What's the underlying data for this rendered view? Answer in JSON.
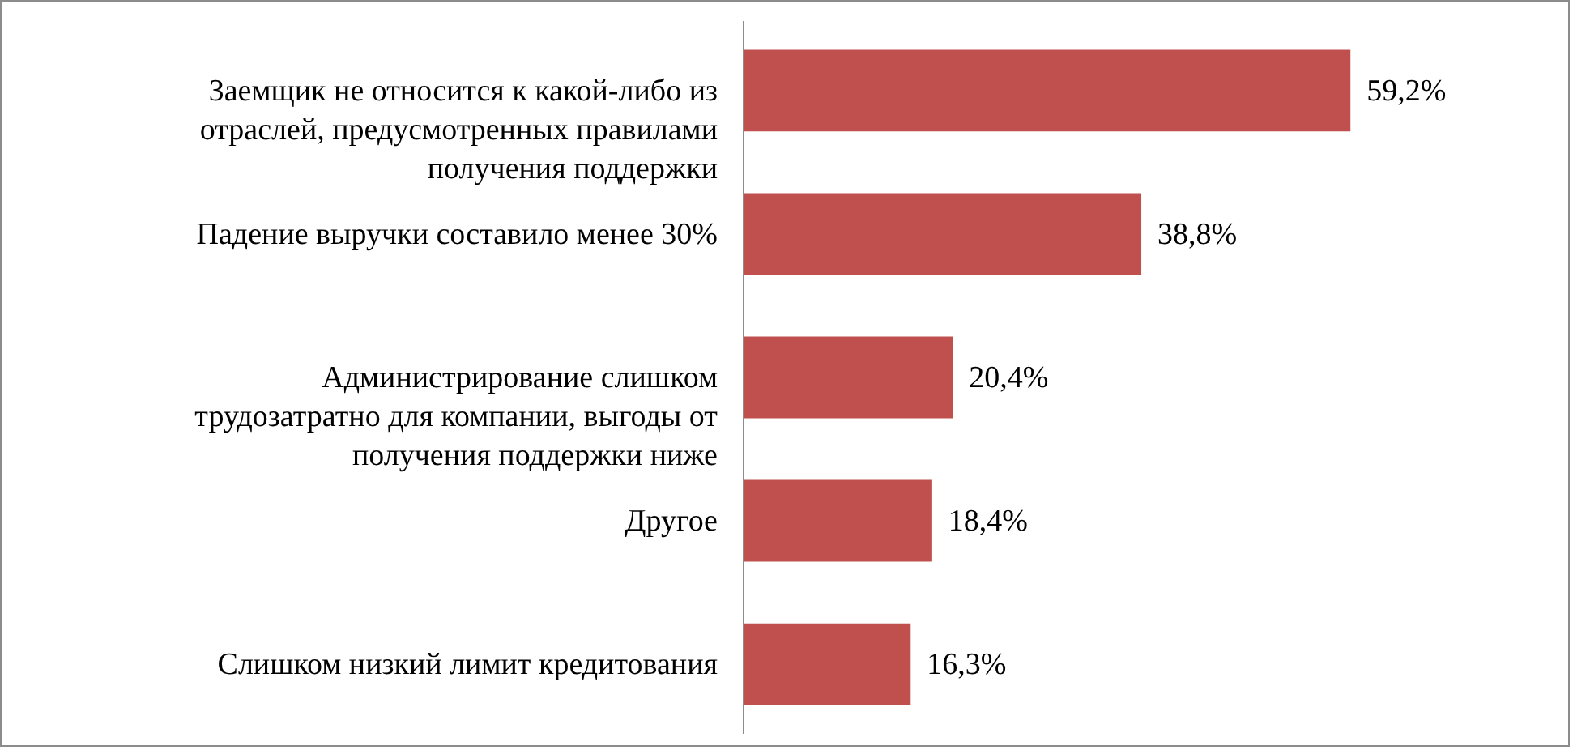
{
  "chart_data": {
    "type": "bar",
    "orientation": "horizontal",
    "categories": [
      "Заемщик не относится к какой-либо из отраслей, предусмотренных правилами получения поддержки",
      "Падение выручки составило менее 30%",
      "Администрирование слишком трудозатратно для компании, выгоды от получения поддержки ниже",
      "Другое",
      "Слишком низкий лимит кредитования"
    ],
    "values": [
      59.2,
      38.8,
      20.4,
      18.4,
      16.3
    ],
    "value_labels": [
      "59,2%",
      "38,8%",
      "20,4%",
      "18,4%",
      "16,3%"
    ],
    "color": "#c0504d"
  }
}
